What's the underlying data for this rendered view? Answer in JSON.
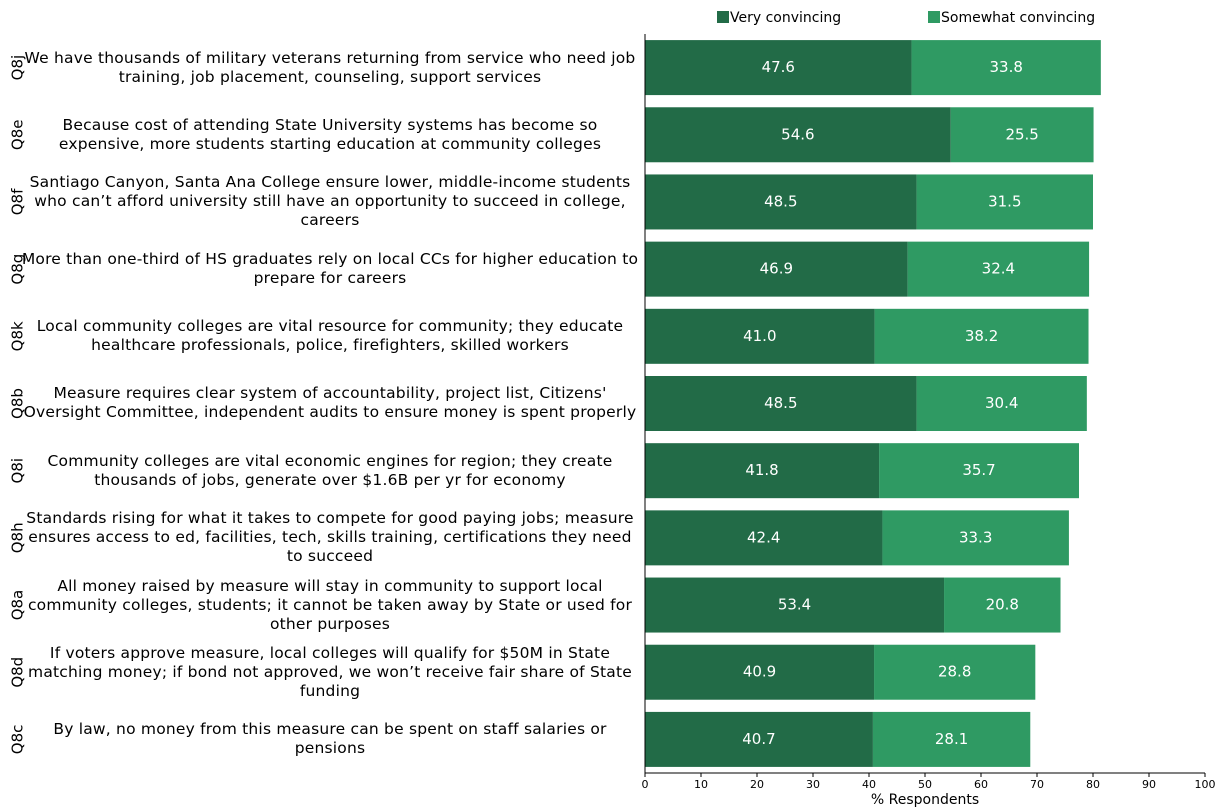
{
  "chart_data": {
    "type": "stacked-barh",
    "codes": [
      "Q8j",
      "Q8e",
      "Q8f",
      "Q8g",
      "Q8k",
      "Q8b",
      "Q8i",
      "Q8h",
      "Q8a",
      "Q8d",
      "Q8c"
    ],
    "categories": [
      "We have thousands of military veterans returning from service who need job training, job placement, counseling, support services",
      "Because cost of attending State University systems has become so expensive, more students starting education at community colleges",
      "Santiago Canyon, Santa Ana College ensure lower, middle-income students who can’t afford university still have an opportunity to succeed in college, careers",
      "More than one-third of HS graduates rely on local CCs for higher education to prepare for careers",
      "Local community colleges are vital resource for community; they educate healthcare professionals, police, firefighters, skilled workers",
      "Measure requires clear system of accountability, project list, Citizens' Oversight Committee, independent audits to ensure money is spent properly",
      "Community colleges are vital economic engines for region; they create thousands of jobs, generate over $1.6B per yr for economy",
      "Standards rising for what it takes to compete for good paying jobs; measure ensures access to ed, facilities, tech, skills training, certifications they need to succeed",
      "All money raised by measure will stay in community to support local community colleges, students; it cannot be taken away by State or used for other purposes",
      "If voters approve measure, local colleges will qualify for $50M in State matching money; if bond not approved, we won’t receive fair share of State funding",
      "By law, no money from this measure can be spent on staff salaries or pensions"
    ],
    "series": [
      {
        "name": "Very convincing",
        "color": "#226b47",
        "values": [
          47.6,
          54.6,
          48.5,
          46.9,
          41.0,
          48.5,
          41.8,
          42.4,
          53.4,
          40.9,
          40.7
        ],
        "value_labels": [
          "47.6",
          "54.6",
          "48.5",
          "46.9",
          "41.0",
          "48.5",
          "41.8",
          "42.4",
          "53.4",
          "40.9",
          "40.7"
        ]
      },
      {
        "name": "Somewhat convincing",
        "color": "#2f9a63",
        "values": [
          33.8,
          25.5,
          31.5,
          32.4,
          38.2,
          30.4,
          35.7,
          33.3,
          20.8,
          28.8,
          28.1
        ],
        "value_labels": [
          "33.8",
          "25.5",
          "31.5",
          "32.4",
          "38.2",
          "30.4",
          "35.7",
          "33.3",
          "20.8",
          "28.8",
          "28.1"
        ]
      }
    ],
    "xlabel": "% Respondents",
    "xlim": [
      0,
      100
    ],
    "xticks": [
      0,
      10,
      20,
      30,
      40,
      50,
      60,
      70,
      80,
      90,
      100
    ],
    "legend": "top"
  }
}
